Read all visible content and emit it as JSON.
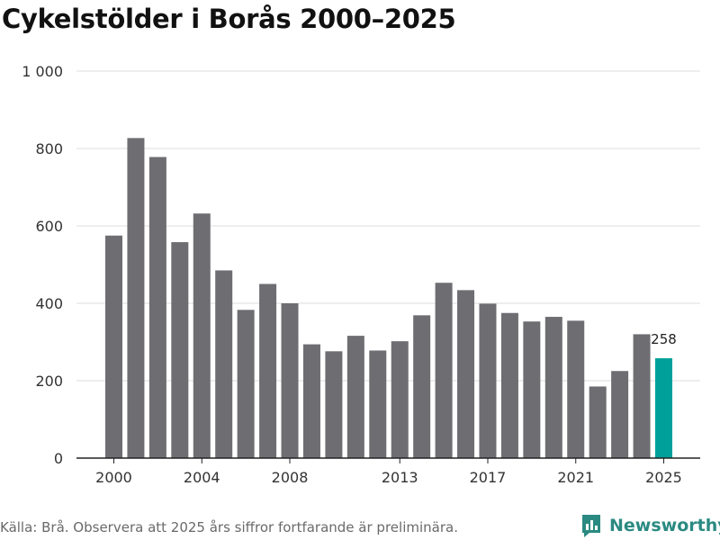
{
  "title": "Cykelstölder i Borås 2000–2025",
  "source": "Källa: Brå. Observera att 2025 års siffror fortfarande är preliminära.",
  "brand": {
    "name": "Newsworthy",
    "icon": "newsworthy-logo-icon",
    "color": "#2a8a82"
  },
  "colors": {
    "bar": "#6e6d72",
    "highlight": "#00a09a",
    "grid": "#dddddd",
    "axis": "#222222"
  },
  "chart_data": {
    "type": "bar",
    "title": "Cykelstölder i Borås 2000–2025",
    "categories": [
      "2000",
      "2001",
      "2002",
      "2003",
      "2004",
      "2005",
      "2006",
      "2007",
      "2008",
      "2009",
      "2010",
      "2011",
      "2012",
      "2013",
      "2014",
      "2015",
      "2016",
      "2017",
      "2018",
      "2019",
      "2020",
      "2021",
      "2022",
      "2023",
      "2024",
      "2025"
    ],
    "values": [
      575,
      827,
      778,
      558,
      632,
      485,
      383,
      450,
      400,
      294,
      276,
      316,
      278,
      302,
      369,
      453,
      434,
      399,
      375,
      353,
      365,
      355,
      185,
      225,
      320,
      258
    ],
    "highlight_category": "2025",
    "data_labels": [
      {
        "category": "2025",
        "text": "258"
      }
    ],
    "ylim": [
      0,
      1000
    ],
    "yticks": [
      0,
      200,
      400,
      600,
      800,
      1000
    ],
    "ytick_labels": [
      "0",
      "200",
      "400",
      "600",
      "800",
      "1 000"
    ],
    "xtick_labels": [
      "2000",
      "2004",
      "2008",
      "2013",
      "2017",
      "2021",
      "2025"
    ],
    "xlabel": "",
    "ylabel": "",
    "grid": "horizontal",
    "legend": "none"
  }
}
